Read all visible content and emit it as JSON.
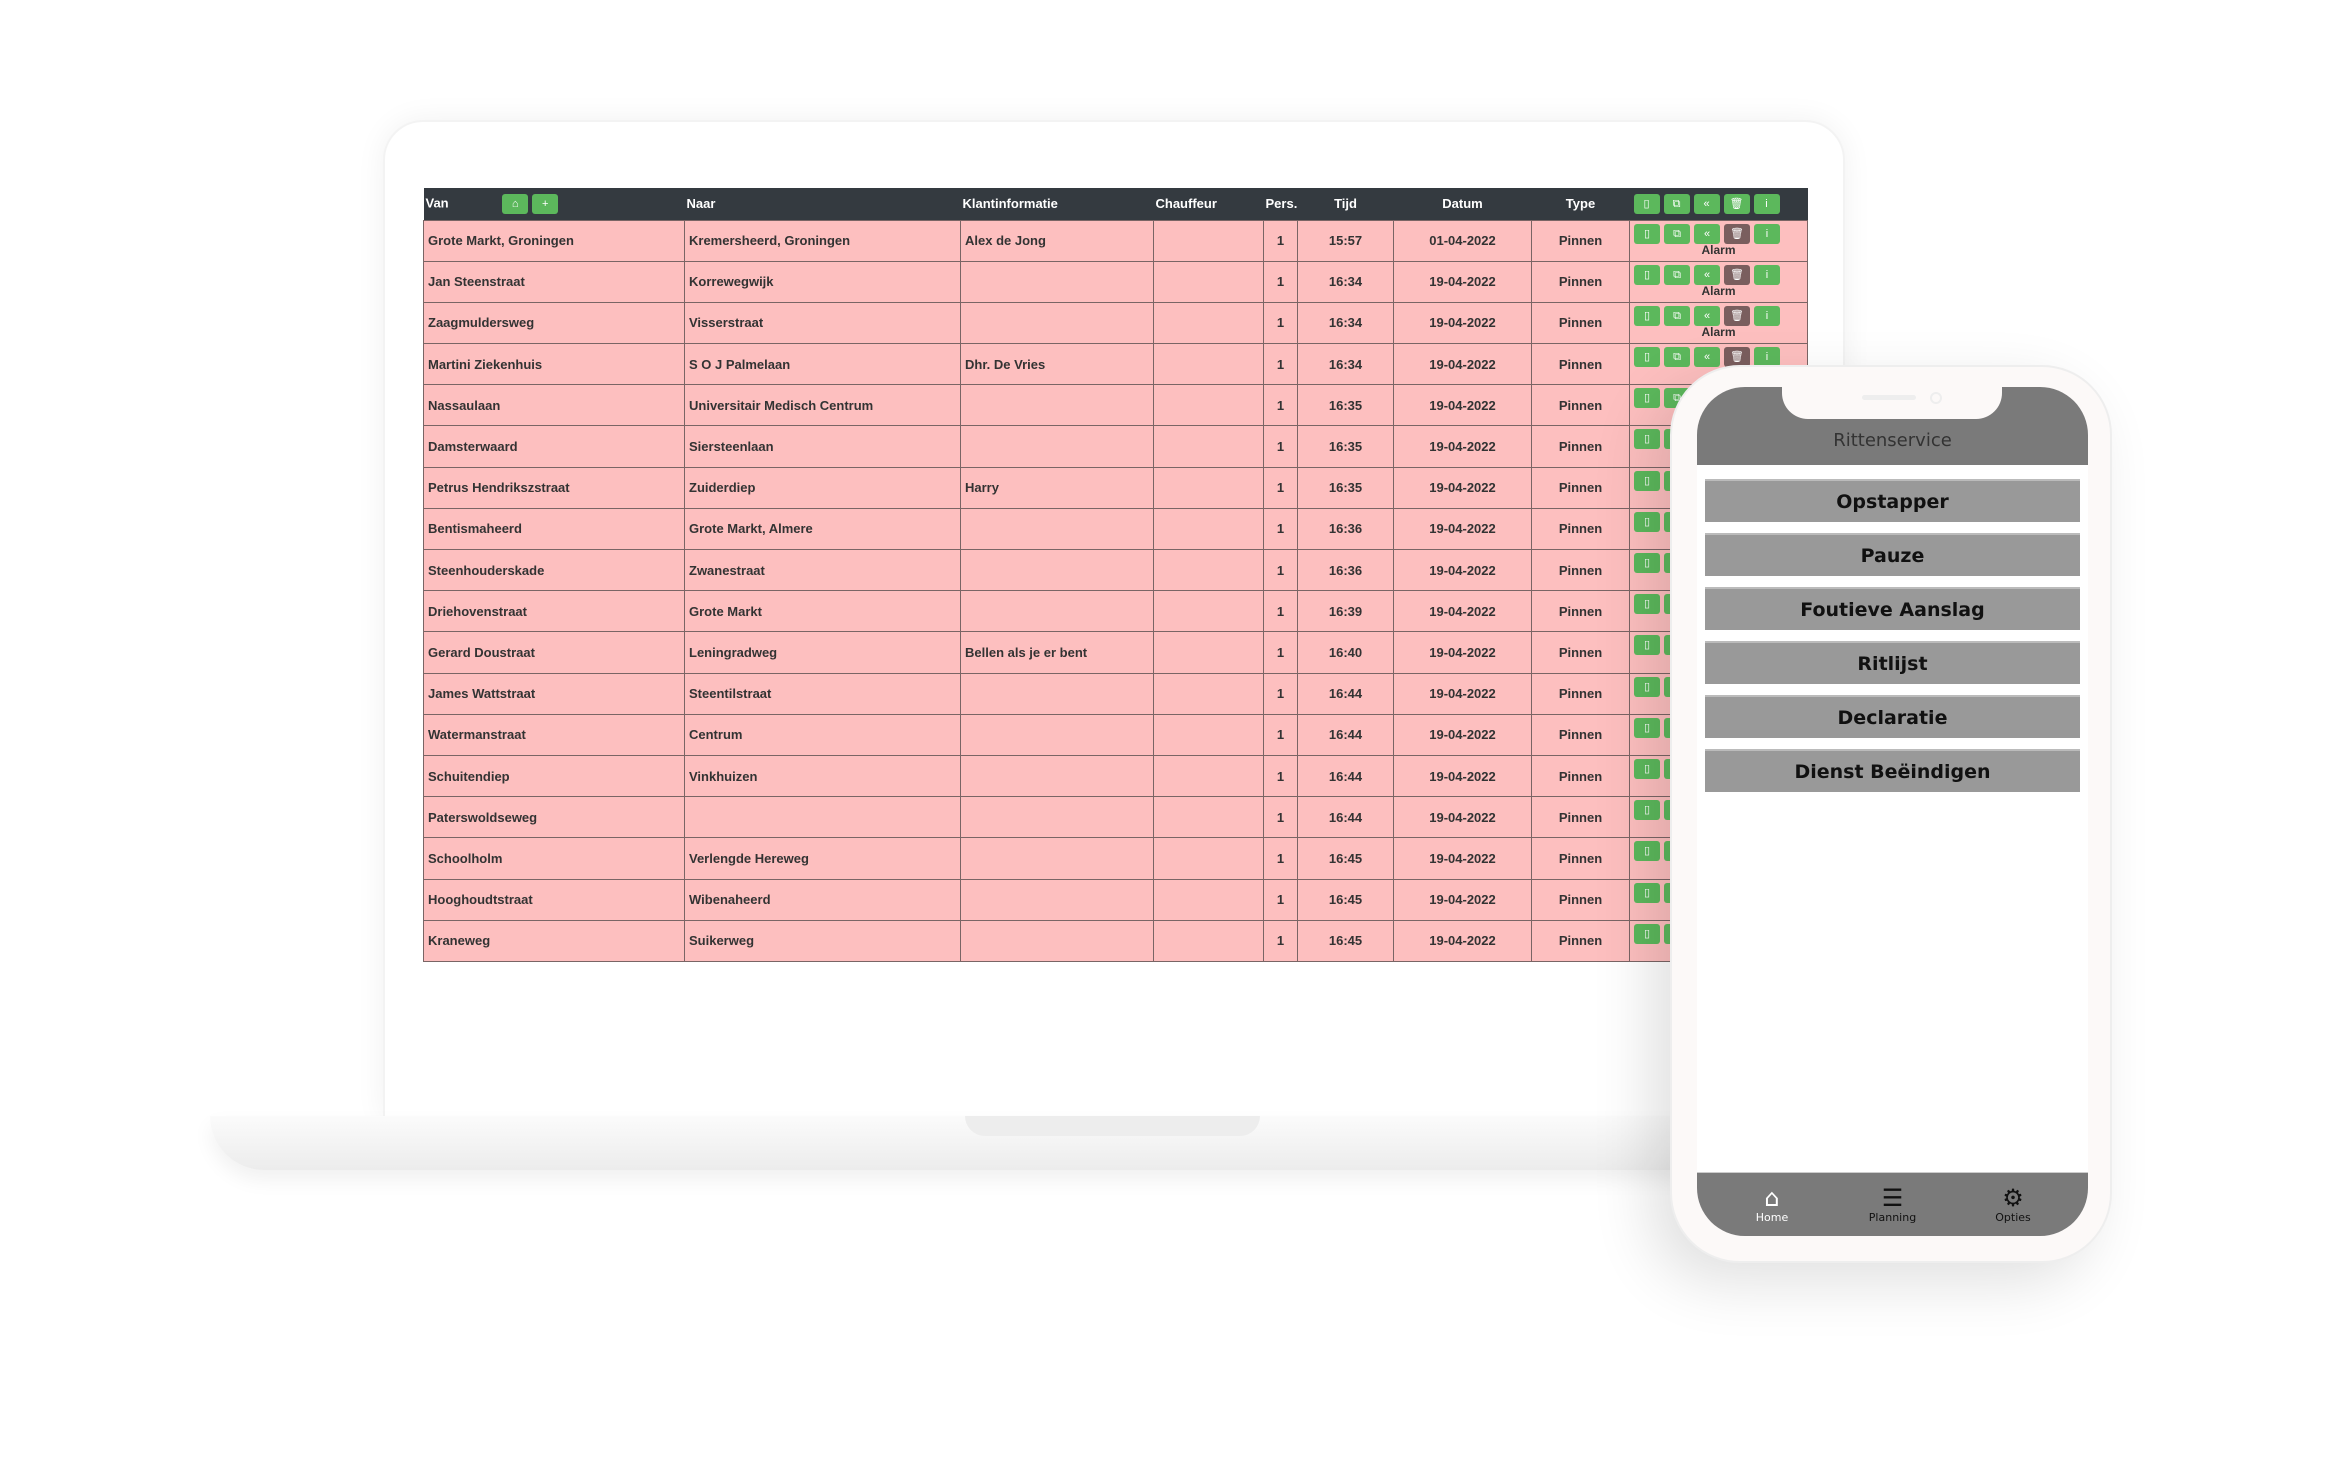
{
  "table": {
    "headers": {
      "van": "Van",
      "naar": "Naar",
      "klant": "Klantinformatie",
      "chauffeur": "Chauffeur",
      "pers": "Pers.",
      "tijd": "Tijd",
      "datum": "Datum",
      "type": "Type"
    },
    "header_buttons": {
      "home_icon": "⌂",
      "add_icon": "+"
    },
    "action_icons": {
      "phone": "▯",
      "copy": "⧉",
      "rewind": "«",
      "trash": "🗑",
      "info": "i"
    },
    "alarm_label": "Alarm",
    "rows": [
      {
        "van": "Grote Markt, Groningen",
        "naar": "Kremersheerd, Groningen",
        "klant": "Alex de Jong",
        "chauffeur": "",
        "pers": "1",
        "tijd": "15:57",
        "datum": "01-04-2022",
        "type": "Pinnen",
        "alarm": true
      },
      {
        "van": "Jan Steenstraat",
        "naar": "Korrewegwijk",
        "klant": "",
        "chauffeur": "",
        "pers": "1",
        "tijd": "16:34",
        "datum": "19-04-2022",
        "type": "Pinnen",
        "alarm": true
      },
      {
        "van": "Zaagmuldersweg",
        "naar": "Visserstraat",
        "klant": "",
        "chauffeur": "",
        "pers": "1",
        "tijd": "16:34",
        "datum": "19-04-2022",
        "type": "Pinnen",
        "alarm": true
      },
      {
        "van": "Martini Ziekenhuis",
        "naar": "S O J Palmelaan",
        "klant": "Dhr. De Vries",
        "chauffeur": "",
        "pers": "1",
        "tijd": "16:34",
        "datum": "19-04-2022",
        "type": "Pinnen",
        "alarm": false
      },
      {
        "van": "Nassaulaan",
        "naar": "Universitair Medisch Centrum",
        "klant": "",
        "chauffeur": "",
        "pers": "1",
        "tijd": "16:35",
        "datum": "19-04-2022",
        "type": "Pinnen",
        "alarm": false
      },
      {
        "van": "Damsterwaard",
        "naar": "Siersteenlaan",
        "klant": "",
        "chauffeur": "",
        "pers": "1",
        "tijd": "16:35",
        "datum": "19-04-2022",
        "type": "Pinnen",
        "alarm": false
      },
      {
        "van": "Petrus Hendrikszstraat",
        "naar": "Zuiderdiep",
        "klant": "Harry",
        "chauffeur": "",
        "pers": "1",
        "tijd": "16:35",
        "datum": "19-04-2022",
        "type": "Pinnen",
        "alarm": false
      },
      {
        "van": "Bentismaheerd",
        "naar": "Grote Markt, Almere",
        "klant": "",
        "chauffeur": "",
        "pers": "1",
        "tijd": "16:36",
        "datum": "19-04-2022",
        "type": "Pinnen",
        "alarm": false
      },
      {
        "van": "Steenhouderskade",
        "naar": "Zwanestraat",
        "klant": "",
        "chauffeur": "",
        "pers": "1",
        "tijd": "16:36",
        "datum": "19-04-2022",
        "type": "Pinnen",
        "alarm": false
      },
      {
        "van": "Driehovenstraat",
        "naar": "Grote Markt",
        "klant": "",
        "chauffeur": "",
        "pers": "1",
        "tijd": "16:39",
        "datum": "19-04-2022",
        "type": "Pinnen",
        "alarm": false
      },
      {
        "van": "Gerard Doustraat",
        "naar": "Leningradweg",
        "klant": "Bellen als je er bent",
        "chauffeur": "",
        "pers": "1",
        "tijd": "16:40",
        "datum": "19-04-2022",
        "type": "Pinnen",
        "alarm": false
      },
      {
        "van": "James Wattstraat",
        "naar": "Steentilstraat",
        "klant": "",
        "chauffeur": "",
        "pers": "1",
        "tijd": "16:44",
        "datum": "19-04-2022",
        "type": "Pinnen",
        "alarm": false
      },
      {
        "van": "Watermanstraat",
        "naar": "Centrum",
        "klant": "",
        "chauffeur": "",
        "pers": "1",
        "tijd": "16:44",
        "datum": "19-04-2022",
        "type": "Pinnen",
        "alarm": false
      },
      {
        "van": "Schuitendiep",
        "naar": "Vinkhuizen",
        "klant": "",
        "chauffeur": "",
        "pers": "1",
        "tijd": "16:44",
        "datum": "19-04-2022",
        "type": "Pinnen",
        "alarm": false
      },
      {
        "van": "Paterswoldseweg",
        "naar": "",
        "klant": "",
        "chauffeur": "",
        "pers": "1",
        "tijd": "16:44",
        "datum": "19-04-2022",
        "type": "Pinnen",
        "alarm": false
      },
      {
        "van": "Schoolholm",
        "naar": "Verlengde Hereweg",
        "klant": "",
        "chauffeur": "",
        "pers": "1",
        "tijd": "16:45",
        "datum": "19-04-2022",
        "type": "Pinnen",
        "alarm": false
      },
      {
        "van": "Hooghoudtstraat",
        "naar": "Wibenaheerd",
        "klant": "",
        "chauffeur": "",
        "pers": "1",
        "tijd": "16:45",
        "datum": "19-04-2022",
        "type": "Pinnen",
        "alarm": false
      },
      {
        "van": "Kraneweg",
        "naar": "Suikerweg",
        "klant": "",
        "chauffeur": "",
        "pers": "1",
        "tijd": "16:45",
        "datum": "19-04-2022",
        "type": "Pinnen",
        "alarm": false
      }
    ]
  },
  "colors": {
    "row_bg": "#fdbfbf",
    "header_bg": "#343a40",
    "button_green": "#5cb85c",
    "button_trash": "#7a5e5e",
    "phone_bar": "#7a7a7a",
    "menu_button": "#999999"
  },
  "phone": {
    "title": "Rittenservice",
    "menu": [
      "Opstapper",
      "Pauze",
      "Foutieve Aanslag",
      "Ritlijst",
      "Declaratie",
      "Dienst Beëindigen"
    ],
    "tabs": [
      {
        "label": "Home",
        "icon": "⌂"
      },
      {
        "label": "Planning",
        "icon": "☰"
      },
      {
        "label": "Opties",
        "icon": "⚙"
      }
    ]
  }
}
